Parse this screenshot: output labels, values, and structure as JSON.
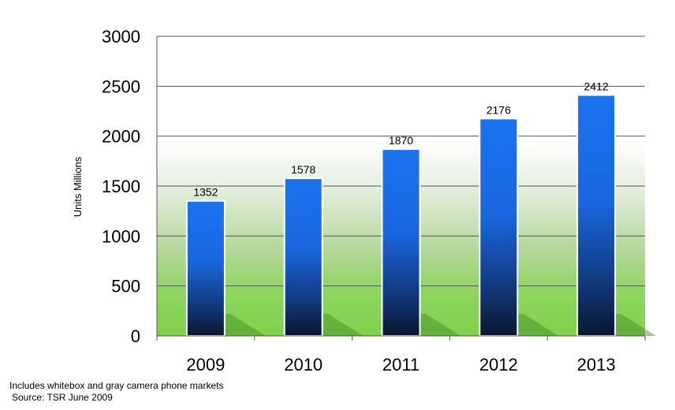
{
  "chart_data": {
    "type": "bar",
    "categories": [
      "2009",
      "2010",
      "2011",
      "2012",
      "2013"
    ],
    "values": [
      1352,
      1578,
      1870,
      2176,
      2412
    ],
    "data_labels": [
      "1352",
      "1578",
      "1870",
      "2176",
      "2412"
    ],
    "ylabel": "Units Millions",
    "ylim": [
      0,
      3000
    ],
    "yticks": [
      0,
      500,
      1000,
      1500,
      2000,
      2500,
      3000
    ],
    "ytick_labels": [
      "0",
      "500",
      "1000",
      "1500",
      "2000",
      "2500",
      "3000"
    ],
    "grid": true,
    "legend": "none",
    "colors": {
      "bar_top": "#1a73f0",
      "bar_bottom": "#0a1630",
      "plot_bottom": "#7fd24a",
      "grid": "#555555"
    }
  },
  "footnotes": {
    "line1": "Includes whitebox and gray camera phone markets",
    "line2": "Source: TSR June 2009"
  }
}
